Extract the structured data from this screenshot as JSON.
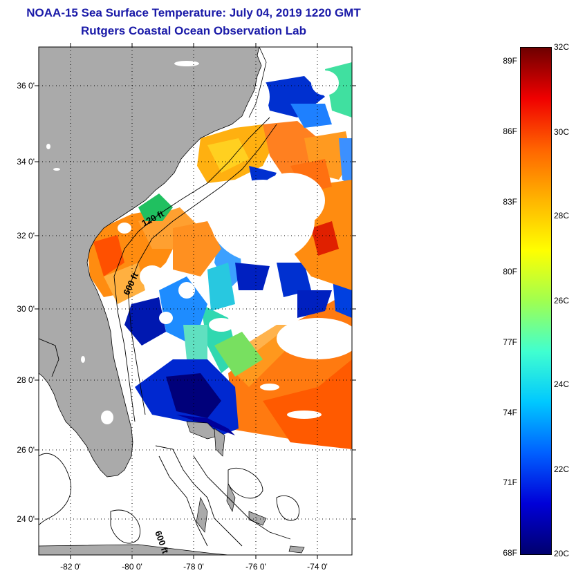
{
  "title": "NOAA-15 Sea Surface Temperature:  July 04, 2019 1220 GMT",
  "subtitle": "Rutgers Coastal Ocean Observation Lab",
  "lat_labels": [
    "36 0'",
    "34 0'",
    "32 0'",
    "30 0'",
    "28 0'",
    "26 0'",
    "24 0'"
  ],
  "lon_labels": [
    "-82 0'",
    "-80 0'",
    "-78 0'",
    "-76 0'",
    "-74 0'"
  ],
  "contour_labels": [
    "120 ft",
    "600 ft",
    "600 ft"
  ],
  "colorbar": {
    "fahrenheit_labels": [
      "89F",
      "86F",
      "83F",
      "80F",
      "77F",
      "74F",
      "71F",
      "68F"
    ],
    "celsius_labels": [
      "32C",
      "30C",
      "28C",
      "26C",
      "24C",
      "22C",
      "20C"
    ],
    "range_c": [
      20,
      32
    ],
    "colors": [
      "#00006e",
      "#0000d8",
      "#0060ff",
      "#00c8ff",
      "#40ffd0",
      "#a0ff50",
      "#ffff00",
      "#ffb400",
      "#ff6400",
      "#f00000",
      "#6e0000"
    ]
  },
  "colors": {
    "land": "#aaaaaa",
    "ocean_nodata": "#ffffff",
    "title": "#1a1aa8"
  }
}
